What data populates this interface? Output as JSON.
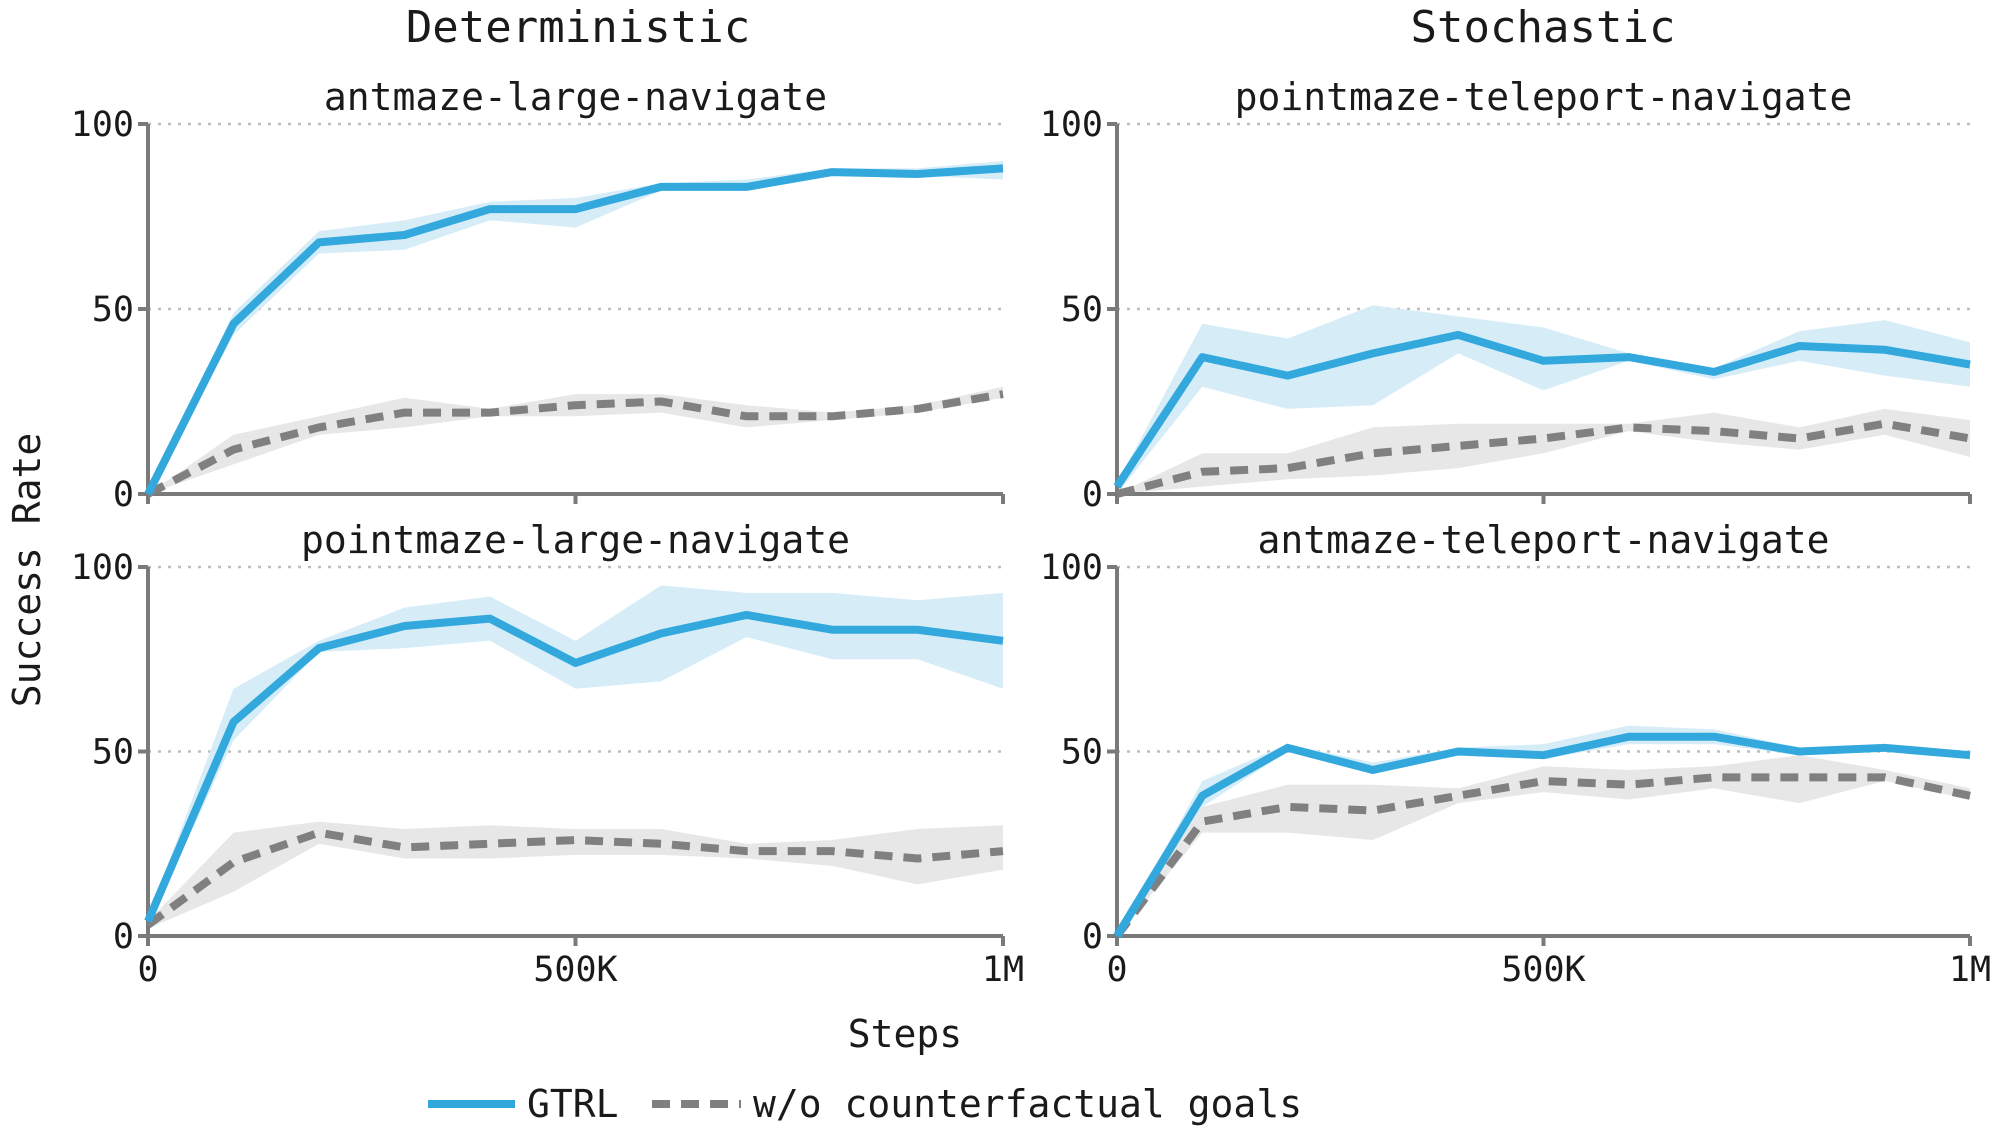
{
  "figure": {
    "column_titles": [
      "Deterministic",
      "Stochastic"
    ],
    "ylabel": "Success Rate",
    "xlabel": "Steps",
    "xlim": [
      0,
      1000000
    ],
    "ylim": [
      0,
      100
    ],
    "x_ticks": [
      0,
      500000,
      1000000
    ],
    "x_tick_labels": [
      "0",
      "500K",
      "1M"
    ],
    "y_ticks": [
      0,
      50,
      100
    ],
    "y_tick_labels": [
      "0",
      "50",
      "100"
    ],
    "gridlines": "horizontal dotted",
    "legend_position": "bottom-center",
    "colors": {
      "gtrl": "#33a8dd",
      "gtrl_band": "#d2ebf7",
      "ablation": "#808080",
      "ablation_band": "#e4e4e4",
      "axis": "#7a7a7a",
      "grid": "#bdbdbd"
    }
  },
  "legend": {
    "gtrl": "GTRL",
    "ablation": "w/o counterfactual goals"
  },
  "chart_data": [
    {
      "type": "line",
      "title": "antmaze-large-navigate",
      "x": [
        0,
        100000,
        200000,
        300000,
        400000,
        500000,
        600000,
        700000,
        800000,
        900000,
        1000000
      ],
      "series": [
        {
          "name": "GTRL",
          "values": [
            0,
            46,
            68,
            70,
            77,
            77,
            83,
            83,
            87,
            86.5,
            88
          ],
          "lower": [
            0,
            43,
            65,
            66,
            74,
            72,
            82,
            82,
            86,
            86,
            85
          ],
          "upper": [
            0,
            49,
            71,
            74,
            79,
            80,
            84,
            85,
            88,
            88,
            90
          ]
        },
        {
          "name": "w/o counterfactual goals",
          "values": [
            0,
            12,
            18,
            22,
            22,
            24,
            25,
            21,
            21,
            23,
            27
          ],
          "lower": [
            0,
            8,
            16,
            18,
            21,
            21,
            22,
            18,
            20,
            22,
            26
          ],
          "upper": [
            0,
            16,
            21,
            26,
            23,
            27,
            27,
            24,
            22,
            24,
            29
          ]
        }
      ]
    },
    {
      "type": "line",
      "title": "pointmaze-teleport-navigate",
      "x": [
        0,
        100000,
        200000,
        300000,
        400000,
        500000,
        600000,
        700000,
        800000,
        900000,
        1000000
      ],
      "series": [
        {
          "name": "GTRL",
          "values": [
            2,
            37,
            32,
            38,
            43,
            36,
            37,
            33,
            40,
            39,
            35
          ],
          "lower": [
            0,
            29,
            23,
            24,
            38,
            28,
            36,
            31,
            36,
            32,
            29
          ],
          "upper": [
            3,
            46,
            42,
            51,
            48,
            45,
            38,
            34,
            44,
            47,
            41
          ]
        },
        {
          "name": "w/o counterfactual goals",
          "values": [
            0,
            6,
            7,
            11,
            13,
            15,
            18,
            17,
            15,
            19,
            15
          ],
          "lower": [
            0,
            2,
            4,
            5,
            7,
            11,
            17,
            14,
            12,
            16,
            10
          ],
          "upper": [
            0,
            11,
            11,
            18,
            19,
            19,
            19,
            22,
            18,
            23,
            20
          ]
        }
      ]
    },
    {
      "type": "line",
      "title": "pointmaze-large-navigate",
      "x": [
        0,
        100000,
        200000,
        300000,
        400000,
        500000,
        600000,
        700000,
        800000,
        900000,
        1000000
      ],
      "series": [
        {
          "name": "GTRL",
          "values": [
            4,
            58,
            78,
            84,
            86,
            74,
            82,
            87,
            83,
            83,
            80
          ],
          "lower": [
            3,
            53,
            77,
            78,
            80,
            67,
            69,
            81,
            75,
            75,
            67
          ],
          "upper": [
            5,
            67,
            80,
            89,
            92,
            80,
            95,
            93,
            93,
            91,
            93
          ]
        },
        {
          "name": "w/o counterfactual goals",
          "values": [
            3,
            20,
            28,
            24,
            25,
            26,
            25,
            23,
            23,
            21,
            23
          ],
          "lower": [
            2,
            12,
            25,
            21,
            21,
            22,
            22,
            21,
            19,
            14,
            18
          ],
          "upper": [
            4,
            28,
            31,
            29,
            30,
            29,
            29,
            25,
            26,
            29,
            30
          ]
        }
      ]
    },
    {
      "type": "line",
      "title": "antmaze-teleport-navigate",
      "x": [
        0,
        100000,
        200000,
        300000,
        400000,
        500000,
        600000,
        700000,
        800000,
        900000,
        1000000
      ],
      "series": [
        {
          "name": "GTRL",
          "values": [
            0,
            38,
            51,
            45,
            50,
            49,
            54,
            54,
            50,
            51,
            49
          ],
          "lower": [
            0,
            35,
            50,
            44,
            49,
            48,
            52,
            52,
            49,
            50,
            48
          ],
          "upper": [
            0,
            42,
            52,
            47,
            51,
            52,
            57,
            56,
            51,
            52,
            50
          ]
        },
        {
          "name": "w/o counterfactual goals",
          "values": [
            0,
            31,
            35,
            34,
            38,
            42,
            41,
            43,
            43,
            43,
            38
          ],
          "lower": [
            0,
            28,
            28,
            26,
            36,
            39,
            37,
            40,
            36,
            42,
            37
          ],
          "upper": [
            0,
            35,
            41,
            41,
            40,
            46,
            45,
            46,
            49,
            45,
            40
          ]
        }
      ]
    }
  ]
}
